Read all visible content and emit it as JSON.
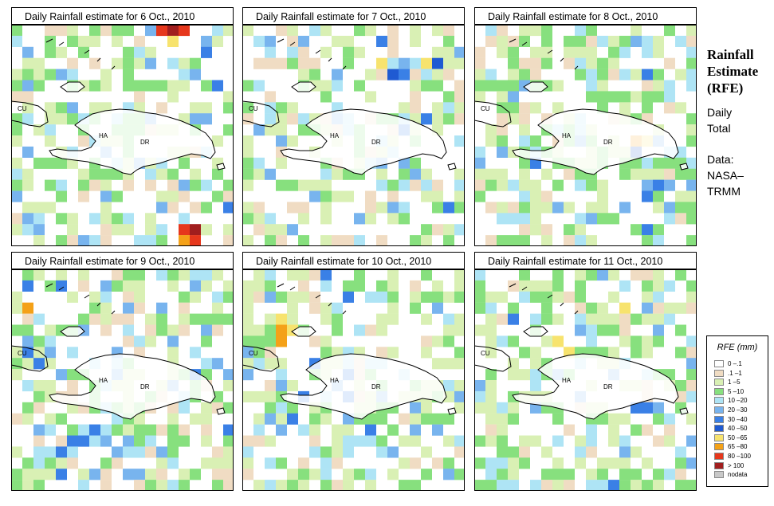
{
  "panels": [
    {
      "title": "Daily Rainfall estimate for  6 Oct., 2010",
      "seed": 6
    },
    {
      "title": "Daily Rainfall estimate for  7 Oct., 2010",
      "seed": 7
    },
    {
      "title": "Daily Rainfall estimate for  8 Oct., 2010",
      "seed": 8
    },
    {
      "title": "Daily Rainfall estimate for  9 Oct., 2010",
      "seed": 9
    },
    {
      "title": "Daily Rainfall estimate for  10 Oct., 2010",
      "seed": 10
    },
    {
      "title": "Daily Rainfall estimate for  11 Oct., 2010",
      "seed": 11
    }
  ],
  "map_labels": {
    "cu": "CU",
    "ha": "HA",
    "dr": "DR"
  },
  "side": {
    "title_1": "Rainfall",
    "title_2": "Estimate",
    "title_3": "(RFE)",
    "daily_1": "Daily",
    "daily_2": "Total",
    "data_1": "Data:",
    "data_2": "NASA–",
    "data_3": "TRMM"
  },
  "legend": {
    "title": "RFE (mm)",
    "items": [
      {
        "label": "0 –.1",
        "color": "#ffffff"
      },
      {
        "label": ".1 –1",
        "color": "#f0dcc3"
      },
      {
        "label": "1 –5",
        "color": "#d9f0b4"
      },
      {
        "label": "5 –10",
        "color": "#87e07e"
      },
      {
        "label": "10 –20",
        "color": "#aee4f5"
      },
      {
        "label": "20 –30",
        "color": "#78b4ee"
      },
      {
        "label": "30 –40",
        "color": "#3a80e6"
      },
      {
        "label": "40 –50",
        "color": "#1f5ad2"
      },
      {
        "label": "50 –65",
        "color": "#f7e36e"
      },
      {
        "label": "65 –80",
        "color": "#f4a118"
      },
      {
        "label": "80 –100",
        "color": "#e6371c"
      },
      {
        "label": "> 100",
        "color": "#a11e1e"
      },
      {
        "label": "nodata",
        "color": "#c8c8c8"
      }
    ]
  },
  "hotspots": [
    [
      {
        "r": 0,
        "c": 14,
        "v": 11
      },
      {
        "r": 0,
        "c": 13,
        "v": 10
      },
      {
        "r": 0,
        "c": 15,
        "v": 10
      },
      {
        "r": 1,
        "c": 14,
        "v": 8
      },
      {
        "r": 18,
        "c": 15,
        "v": 10
      },
      {
        "r": 18,
        "c": 16,
        "v": 11
      },
      {
        "r": 19,
        "c": 15,
        "v": 9
      },
      {
        "r": 19,
        "c": 16,
        "v": 10
      },
      {
        "r": 20,
        "c": 14,
        "v": 8
      }
    ],
    [
      {
        "r": 3,
        "c": 12,
        "v": 8
      },
      {
        "r": 3,
        "c": 16,
        "v": 8
      },
      {
        "r": 4,
        "c": 13,
        "v": 7
      },
      {
        "r": 3,
        "c": 17,
        "v": 7
      }
    ],
    [
      {
        "r": 10,
        "c": 14,
        "v": 9
      },
      {
        "r": 10,
        "c": 15,
        "v": 8
      },
      {
        "r": 11,
        "c": 14,
        "v": 7
      }
    ],
    [
      {
        "r": 3,
        "c": 1,
        "v": 9
      }
    ],
    [
      {
        "r": 4,
        "c": 3,
        "v": 8
      },
      {
        "r": 5,
        "c": 3,
        "v": 9
      },
      {
        "r": 5,
        "c": 4,
        "v": 8
      },
      {
        "r": 6,
        "c": 3,
        "v": 9
      }
    ],
    [
      {
        "r": 3,
        "c": 13,
        "v": 8
      },
      {
        "r": 6,
        "c": 7,
        "v": 8
      },
      {
        "r": 7,
        "c": 8,
        "v": 8
      }
    ]
  ]
}
